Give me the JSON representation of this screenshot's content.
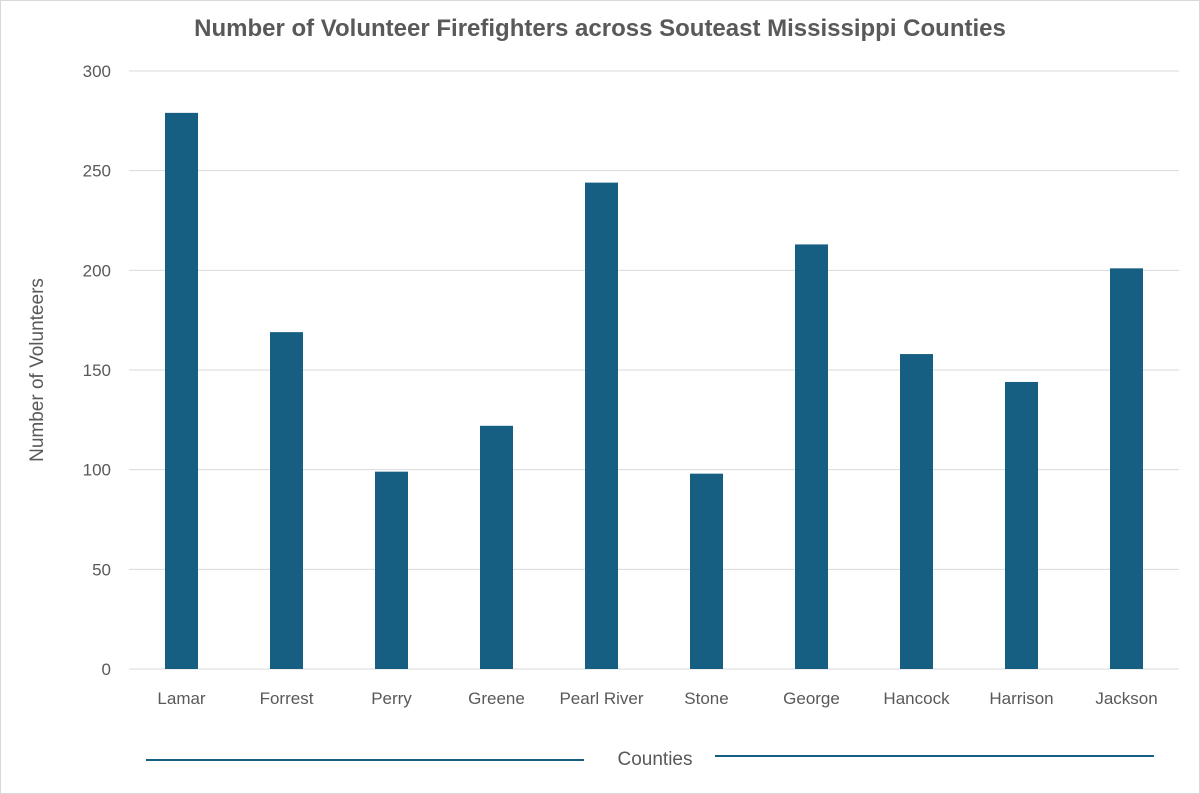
{
  "chart_data": {
    "type": "bar",
    "title": "Number of Volunteer Firefighters across Souteast Mississippi Counties",
    "xlabel": "Counties",
    "ylabel": "Number of Volunteers",
    "categories": [
      "Lamar",
      "Forrest",
      "Perry",
      "Greene",
      "Pearl River",
      "Stone",
      "George",
      "Hancock",
      "Harrison",
      "Jackson"
    ],
    "values": [
      279,
      169,
      99,
      122,
      244,
      98,
      213,
      158,
      144,
      201
    ],
    "ylim": [
      0,
      300
    ],
    "yticks": [
      "0",
      "50",
      "100",
      "150",
      "200",
      "250",
      "300"
    ],
    "grid": true,
    "legend": "none",
    "colors": {
      "bar": "#175f82",
      "grid": "#d9d9d9",
      "text": "#595959",
      "axis_line": "#175f82"
    }
  }
}
